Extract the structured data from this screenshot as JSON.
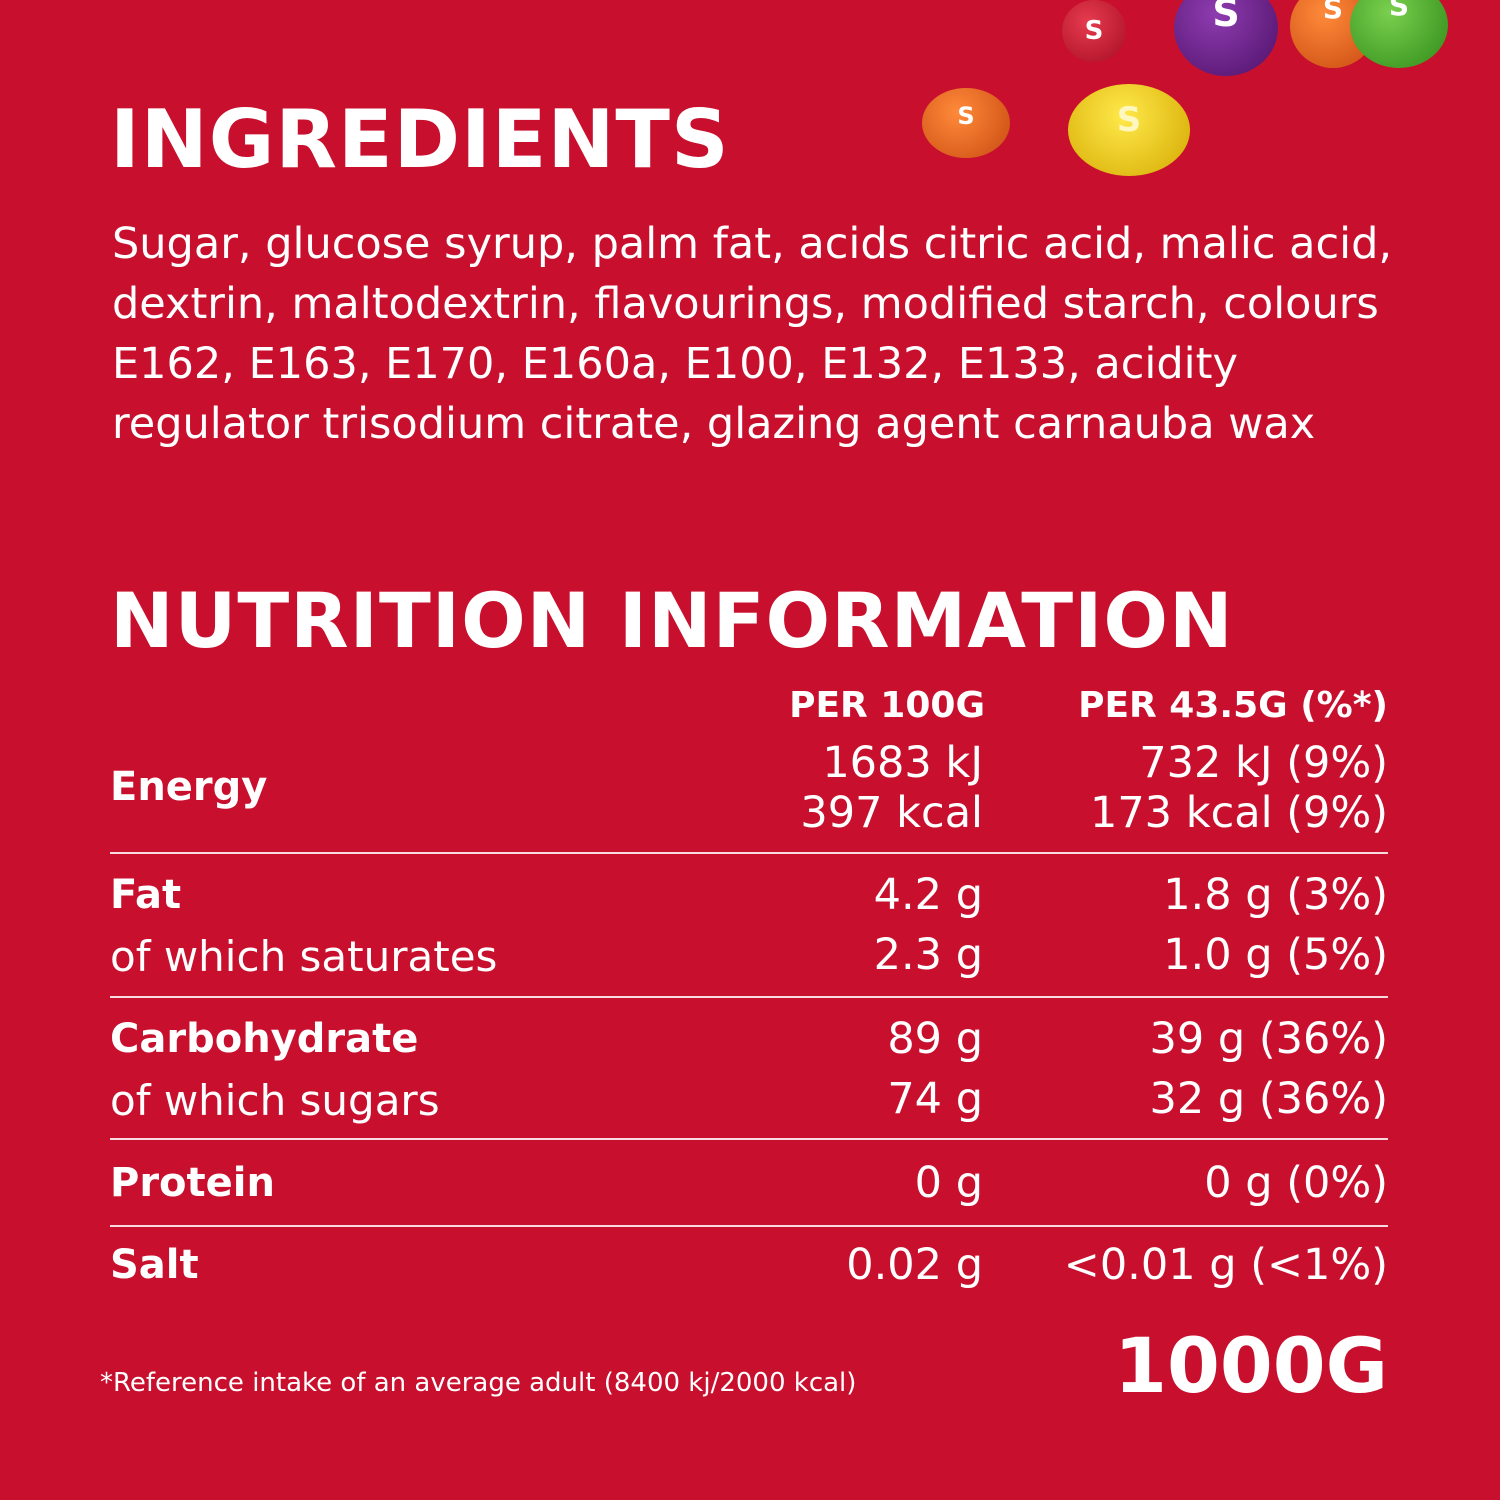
{
  "ingredients": {
    "title": "INGREDIENTS",
    "text": "Sugar, glucose syrup, palm fat, acids citric acid, malic acid, dextrin, maltodextrin, flavourings, modified starch, colours E162, E163, E170, E160a, E100, E132, E133, acidity regulator trisodium citrate, glazing agent carnauba wax"
  },
  "nutrition": {
    "title": "NUTRITION INFORMATION",
    "col1_header": "PER 100G",
    "col2_header": "PER 43.5G (%*)",
    "energy": {
      "label": "Energy",
      "kj_100": "1683 kJ",
      "kcal_100": "397 kcal",
      "kj_portion": "732 kJ (9%)",
      "kcal_portion": "173 kcal (9%)"
    },
    "fat": {
      "label": "Fat",
      "per100": "4.2 g",
      "portion": "1.8 g (3%)"
    },
    "saturates": {
      "label": "of which saturates",
      "per100": "2.3 g",
      "portion": "1.0 g (5%)"
    },
    "carbohydrate": {
      "label": "Carbohydrate",
      "per100": "89 g",
      "portion": "39 g (36%)"
    },
    "sugars": {
      "label": "of which sugars",
      "per100": "74 g",
      "portion": "32 g (36%)"
    },
    "protein": {
      "label": "Protein",
      "per100": "0 g",
      "portion": "0 g (0%)"
    },
    "salt": {
      "label": "Salt",
      "per100": "0.02 g",
      "portion": "<0.01 g (<1%)"
    }
  },
  "footnote": "*Reference intake of an average adult (8400 kj/2000 kcal)",
  "net_weight": "1000G",
  "candies": {
    "letter": "S",
    "colors": {
      "background": "#c8102e",
      "red": "#c8102e",
      "purple": "#6a1b8a",
      "orange": "#e8601c",
      "green": "#4caf2a",
      "yellow": "#f5d000"
    }
  }
}
